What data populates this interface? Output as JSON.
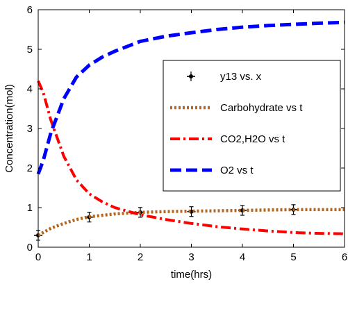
{
  "chart_data": {
    "type": "line",
    "title": "",
    "xlabel": "time(hrs)",
    "ylabel": "Concentration(mol)",
    "xlim": [
      0,
      6
    ],
    "ylim": [
      0,
      6
    ],
    "xticks": [
      "0",
      "1",
      "2",
      "3",
      "4",
      "5",
      "6"
    ],
    "yticks": [
      "0",
      "1",
      "2",
      "3",
      "4",
      "5",
      "6"
    ],
    "grid": false,
    "legend_position": "top-right",
    "series": [
      {
        "name": "y13 vs. x",
        "style": "markers-errorbar",
        "color": "#000000",
        "x": [
          0,
          1,
          2,
          3,
          4,
          5
        ],
        "y": [
          0.3,
          0.76,
          0.88,
          0.9,
          0.93,
          0.95
        ]
      },
      {
        "name": "Carbohydrate vs t",
        "style": "dotted",
        "color": "#b5651d",
        "x": [
          0,
          0.25,
          0.5,
          0.75,
          1,
          1.5,
          2,
          2.5,
          3,
          3.5,
          4,
          4.5,
          5,
          5.5,
          6
        ],
        "y": [
          0.3,
          0.48,
          0.6,
          0.7,
          0.77,
          0.84,
          0.88,
          0.9,
          0.91,
          0.92,
          0.93,
          0.94,
          0.95,
          0.95,
          0.95
        ]
      },
      {
        "name": "CO2,H2O vs t",
        "style": "dashdot",
        "color": "#ff0000",
        "x": [
          0,
          0.1,
          0.25,
          0.5,
          0.75,
          1,
          1.25,
          1.5,
          2,
          2.5,
          3,
          3.5,
          4,
          4.5,
          5,
          5.5,
          6
        ],
        "y": [
          4.2,
          3.9,
          3.2,
          2.3,
          1.7,
          1.35,
          1.15,
          1.0,
          0.82,
          0.7,
          0.6,
          0.52,
          0.46,
          0.41,
          0.37,
          0.35,
          0.34
        ]
      },
      {
        "name": "O2 vs t",
        "style": "dashed",
        "color": "#0000ff",
        "x": [
          0,
          0.1,
          0.25,
          0.5,
          0.75,
          1,
          1.25,
          1.5,
          2,
          2.5,
          3,
          3.5,
          4,
          4.5,
          5,
          5.5,
          6
        ],
        "y": [
          1.85,
          2.2,
          2.9,
          3.75,
          4.3,
          4.6,
          4.8,
          4.95,
          5.2,
          5.33,
          5.42,
          5.5,
          5.56,
          5.6,
          5.63,
          5.66,
          5.68
        ]
      }
    ]
  }
}
